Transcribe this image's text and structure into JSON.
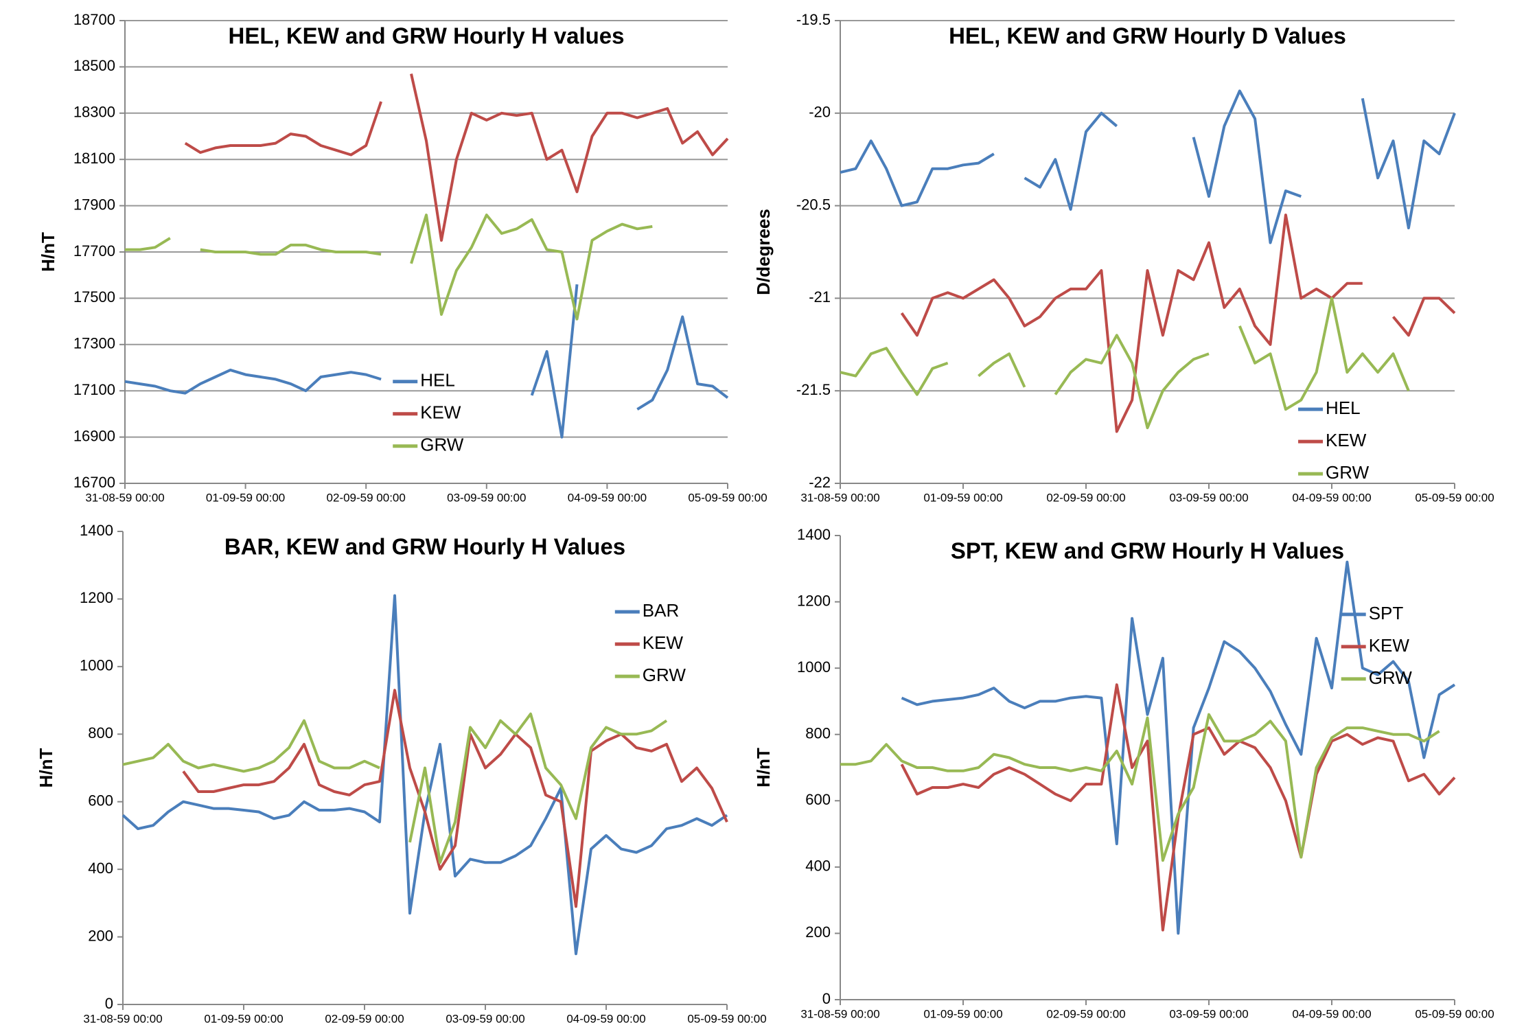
{
  "chart_data": [
    {
      "type": "line",
      "title": "HEL, KEW and GRW Hourly H values",
      "y_label": "H/nT",
      "legend": "lower center",
      "grid": true,
      "categories": [
        "31-08-59 00:00",
        null,
        null,
        null,
        null,
        null,
        null,
        null,
        "01-09-59 00:00",
        null,
        null,
        null,
        null,
        null,
        null,
        null,
        "02-09-59 00:00",
        null,
        null,
        null,
        null,
        null,
        null,
        null,
        "03-09-59 00:00",
        null,
        null,
        null,
        null,
        null,
        null,
        null,
        "04-09-59 00:00",
        null,
        null,
        null,
        null,
        null,
        null,
        null,
        "05-09-59 00:00"
      ],
      "ylim": [
        16700,
        18700
      ],
      "yticks": [
        16700,
        16900,
        17100,
        17300,
        17500,
        17700,
        17900,
        18100,
        18300,
        18500,
        18700
      ],
      "series": [
        {
          "name": "HEL",
          "color": "#4a7ebb",
          "values": [
            17140,
            17130,
            17120,
            17100,
            17090,
            17130,
            17160,
            17190,
            17170,
            17160,
            17150,
            17130,
            17100,
            17160,
            17170,
            17180,
            17170,
            17150,
            null,
            null,
            null,
            null,
            null,
            null,
            null,
            null,
            null,
            17080,
            17270,
            16900,
            17560,
            null,
            null,
            null,
            17020,
            17060,
            17190,
            17420,
            17130,
            17120,
            17070
          ]
        },
        {
          "name": "KEW",
          "color": "#be4b48",
          "values": [
            null,
            null,
            null,
            null,
            18170,
            18130,
            18150,
            18160,
            18160,
            18160,
            18170,
            18210,
            18200,
            18160,
            18140,
            18120,
            18160,
            18350,
            null,
            18470,
            18180,
            17750,
            18100,
            18300,
            18270,
            18300,
            18290,
            18300,
            18100,
            18140,
            17960,
            18200,
            18300,
            18300,
            18280,
            18300,
            18320,
            18170,
            18220,
            18120,
            18190
          ]
        },
        {
          "name": "GRW",
          "color": "#98b954",
          "values": [
            17710,
            17710,
            17720,
            17760,
            null,
            17710,
            17700,
            17700,
            17700,
            17690,
            17690,
            17730,
            17730,
            17710,
            17700,
            17700,
            17700,
            17690,
            null,
            17650,
            17860,
            17430,
            17620,
            17720,
            17860,
            17780,
            17800,
            17840,
            17710,
            17700,
            17410,
            17750,
            17790,
            17820,
            17800,
            17810,
            null,
            null,
            null,
            null,
            null
          ]
        }
      ]
    },
    {
      "type": "line",
      "title": "HEL, KEW and GRW Hourly D Values",
      "y_label": "D/degrees",
      "legend": "lower right",
      "grid": true,
      "categories": [
        "31-08-59 00:00",
        null,
        null,
        null,
        null,
        null,
        null,
        null,
        "01-09-59 00:00",
        null,
        null,
        null,
        null,
        null,
        null,
        null,
        "02-09-59 00:00",
        null,
        null,
        null,
        null,
        null,
        null,
        null,
        "03-09-59 00:00",
        null,
        null,
        null,
        null,
        null,
        null,
        null,
        "04-09-59 00:00",
        null,
        null,
        null,
        null,
        null,
        null,
        null,
        "05-09-59 00:00"
      ],
      "ylim": [
        -22,
        -19.5
      ],
      "yticks": [
        -22,
        -21.5,
        -21,
        -20.5,
        -20,
        -19.5
      ],
      "series": [
        {
          "name": "HEL",
          "color": "#4a7ebb",
          "values": [
            -20.32,
            -20.3,
            -20.15,
            -20.3,
            -20.5,
            -20.48,
            -20.3,
            -20.3,
            -20.28,
            -20.27,
            -20.22,
            null,
            -20.35,
            -20.4,
            -20.25,
            -20.52,
            -20.1,
            -20.0,
            -20.07,
            null,
            null,
            null,
            null,
            -20.13,
            -20.45,
            -20.07,
            -19.88,
            -20.03,
            -20.7,
            -20.42,
            -20.45,
            null,
            null,
            null,
            -19.92,
            -20.35,
            -20.15,
            -20.62,
            -20.15,
            -20.22,
            -20.0
          ]
        },
        {
          "name": "KEW",
          "color": "#be4b48",
          "values": [
            null,
            null,
            null,
            null,
            -21.08,
            -21.2,
            -21.0,
            -20.97,
            -21.0,
            -20.95,
            -20.9,
            -21.0,
            -21.15,
            -21.1,
            -21.0,
            -20.95,
            -20.95,
            -20.85,
            -21.72,
            -21.55,
            -20.85,
            -21.2,
            -20.85,
            -20.9,
            -20.7,
            -21.05,
            -20.95,
            -21.15,
            -21.25,
            -20.55,
            -21.0,
            -20.95,
            -21.0,
            -20.92,
            -20.92,
            null,
            -21.1,
            -21.2,
            -21.0,
            -21.0,
            -21.08
          ]
        },
        {
          "name": "GRW",
          "color": "#98b954",
          "values": [
            -21.4,
            -21.42,
            -21.3,
            -21.27,
            -21.4,
            -21.52,
            -21.38,
            -21.35,
            null,
            -21.42,
            -21.35,
            -21.3,
            -21.48,
            null,
            -21.52,
            -21.4,
            -21.33,
            -21.35,
            -21.2,
            -21.35,
            -21.7,
            -21.5,
            -21.4,
            -21.33,
            -21.3,
            null,
            -21.15,
            -21.35,
            -21.3,
            -21.6,
            -21.55,
            -21.4,
            -21.0,
            -21.4,
            -21.3,
            -21.4,
            -21.3,
            -21.5,
            null,
            null,
            null
          ]
        }
      ]
    },
    {
      "type": "line",
      "title": "BAR, KEW and GRW Hourly H Values",
      "y_label": "H/nT",
      "legend": "upper right",
      "grid": false,
      "categories": [
        "31-08-59 00:00",
        null,
        null,
        null,
        null,
        null,
        null,
        null,
        "01-09-59 00:00",
        null,
        null,
        null,
        null,
        null,
        null,
        null,
        "02-09-59 00:00",
        null,
        null,
        null,
        null,
        null,
        null,
        null,
        "03-09-59 00:00",
        null,
        null,
        null,
        null,
        null,
        null,
        null,
        "04-09-59 00:00",
        null,
        null,
        null,
        null,
        null,
        null,
        null,
        "05-09-59 00:00"
      ],
      "ylim": [
        0,
        1400
      ],
      "yticks": [
        0,
        200,
        400,
        600,
        800,
        1000,
        1200,
        1400
      ],
      "series": [
        {
          "name": "BAR",
          "color": "#4a7ebb",
          "values": [
            560,
            520,
            530,
            570,
            600,
            590,
            580,
            580,
            575,
            570,
            550,
            560,
            600,
            575,
            575,
            580,
            570,
            540,
            1210,
            270,
            570,
            770,
            380,
            430,
            420,
            420,
            440,
            470,
            550,
            640,
            150,
            460,
            500,
            460,
            450,
            470,
            520,
            530,
            550,
            530,
            560
          ]
        },
        {
          "name": "KEW",
          "color": "#be4b48",
          "values": [
            null,
            null,
            null,
            null,
            690,
            630,
            630,
            640,
            650,
            650,
            660,
            700,
            770,
            650,
            630,
            620,
            650,
            660,
            930,
            700,
            570,
            400,
            470,
            800,
            700,
            740,
            800,
            760,
            620,
            600,
            290,
            750,
            780,
            800,
            760,
            750,
            770,
            660,
            700,
            640,
            540
          ]
        },
        {
          "name": "GRW",
          "color": "#98b954",
          "values": [
            710,
            720,
            730,
            770,
            720,
            700,
            710,
            700,
            690,
            700,
            720,
            760,
            840,
            720,
            700,
            700,
            720,
            700,
            null,
            480,
            700,
            420,
            540,
            820,
            760,
            840,
            800,
            860,
            700,
            650,
            550,
            760,
            820,
            800,
            800,
            810,
            840,
            null,
            null,
            null,
            null
          ]
        }
      ]
    },
    {
      "type": "line",
      "title": "SPT, KEW and GRW Hourly H Values",
      "y_label": "H/nT",
      "legend": "upper right",
      "grid": false,
      "categories": [
        "31-08-59 00:00",
        null,
        null,
        null,
        null,
        null,
        null,
        null,
        "01-09-59 00:00",
        null,
        null,
        null,
        null,
        null,
        null,
        null,
        "02-09-59 00:00",
        null,
        null,
        null,
        null,
        null,
        null,
        null,
        "03-09-59 00:00",
        null,
        null,
        null,
        null,
        null,
        null,
        null,
        "04-09-59 00:00",
        null,
        null,
        null,
        null,
        null,
        null,
        null,
        "05-09-59 00:00"
      ],
      "ylim": [
        0,
        1400
      ],
      "yticks": [
        0,
        200,
        400,
        600,
        800,
        1000,
        1200,
        1400
      ],
      "series": [
        {
          "name": "SPT",
          "color": "#4a7ebb",
          "values": [
            null,
            null,
            null,
            null,
            910,
            890,
            900,
            905,
            910,
            920,
            940,
            900,
            880,
            900,
            900,
            910,
            915,
            910,
            470,
            1150,
            860,
            1030,
            200,
            820,
            940,
            1080,
            1050,
            1000,
            930,
            830,
            740,
            1090,
            940,
            1320,
            1000,
            980,
            1020,
            960,
            730,
            920,
            950
          ]
        },
        {
          "name": "KEW",
          "color": "#be4b48",
          "values": [
            null,
            null,
            null,
            null,
            710,
            620,
            640,
            640,
            650,
            640,
            680,
            700,
            680,
            650,
            620,
            600,
            650,
            650,
            950,
            700,
            780,
            210,
            550,
            800,
            820,
            740,
            780,
            760,
            700,
            600,
            430,
            680,
            780,
            800,
            770,
            790,
            780,
            660,
            680,
            620,
            670
          ]
        },
        {
          "name": "GRW",
          "color": "#98b954",
          "values": [
            710,
            710,
            720,
            770,
            720,
            700,
            700,
            690,
            690,
            700,
            740,
            730,
            710,
            700,
            700,
            690,
            700,
            690,
            750,
            650,
            850,
            420,
            560,
            640,
            860,
            780,
            780,
            800,
            840,
            780,
            430,
            700,
            790,
            820,
            820,
            810,
            800,
            800,
            780,
            810,
            null
          ]
        }
      ]
    }
  ]
}
